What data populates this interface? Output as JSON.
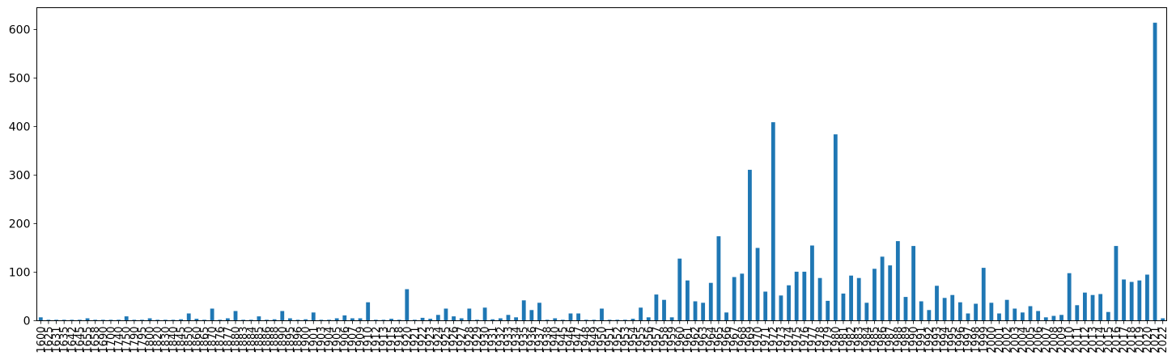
{
  "chart_data": {
    "type": "bar",
    "categories": [
      "1600",
      "1625",
      "1631",
      "1635",
      "1642",
      "1645",
      "1655",
      "1658",
      "1690",
      "1700",
      "1740",
      "1750",
      "1790",
      "1795",
      "1800",
      "1820",
      "1830",
      "1840",
      "1845",
      "1850",
      "1860",
      "1865",
      "1870",
      "1876",
      "1877",
      "1880",
      "1883",
      "1884",
      "1885",
      "1886",
      "1888",
      "1890",
      "1895",
      "1896",
      "1900",
      "1901",
      "1903",
      "1904",
      "1905",
      "1906",
      "1907",
      "1909",
      "1910",
      "1912",
      "1913",
      "1915",
      "1918",
      "1920",
      "1921",
      "1922",
      "1923",
      "1924",
      "1925",
      "1926",
      "1927",
      "1928",
      "1929",
      "1930",
      "1931",
      "1932",
      "1933",
      "1934",
      "1935",
      "1936",
      "1937",
      "1938",
      "1940",
      "1945",
      "1946",
      "1947",
      "1948",
      "1949",
      "1950",
      "1951",
      "1952",
      "1953",
      "1954",
      "1955",
      "1956",
      "1957",
      "1958",
      "1959",
      "1960",
      "1961",
      "1962",
      "1963",
      "1964",
      "1965",
      "1966",
      "1967",
      "1968",
      "1969",
      "1970",
      "1971",
      "1972",
      "1973",
      "1974",
      "1975",
      "1976",
      "1977",
      "1978",
      "1979",
      "1980",
      "1981",
      "1982",
      "1983",
      "1984",
      "1985",
      "1986",
      "1987",
      "1988",
      "1989",
      "1990",
      "1991",
      "1992",
      "1993",
      "1994",
      "1995",
      "1996",
      "1997",
      "1998",
      "1999",
      "2000",
      "2001",
      "2002",
      "2003",
      "2004",
      "2005",
      "2006",
      "2007",
      "2008",
      "2009",
      "2010",
      "2011",
      "2012",
      "2013",
      "2014",
      "2015",
      "2016",
      "2017",
      "2018",
      "2019",
      "2020",
      "2021",
      "2022"
    ],
    "values": [
      7,
      2,
      2,
      2,
      2,
      2,
      5,
      2,
      2,
      2,
      2,
      9,
      2,
      2,
      5,
      2,
      2,
      2,
      3,
      15,
      4,
      2,
      25,
      2,
      5,
      20,
      2,
      2,
      9,
      2,
      3,
      20,
      5,
      2,
      3,
      17,
      2,
      2,
      5,
      11,
      5,
      5,
      38,
      2,
      2,
      4,
      2,
      65,
      2,
      6,
      4,
      12,
      25,
      9,
      5,
      25,
      2,
      27,
      3,
      5,
      12,
      7,
      42,
      22,
      37,
      2,
      5,
      2,
      15,
      15,
      2,
      2,
      25,
      2,
      2,
      2,
      4,
      27,
      7,
      54,
      43,
      7,
      128,
      83,
      40,
      37,
      78,
      174,
      17,
      90,
      97,
      311,
      150,
      60,
      409,
      52,
      73,
      101,
      101,
      155,
      88,
      41,
      384,
      56,
      93,
      88,
      37,
      107,
      132,
      114,
      164,
      49,
      154,
      40,
      22,
      72,
      47,
      53,
      38,
      15,
      35,
      109,
      37,
      15,
      43,
      25,
      17,
      30,
      20,
      7,
      10,
      12,
      98,
      32,
      58,
      53,
      55,
      18,
      154,
      85,
      80,
      83,
      95,
      614,
      5
    ],
    "yticks": [
      0,
      100,
      200,
      300,
      400,
      500,
      600
    ],
    "ylim": [
      0,
      645
    ],
    "bar_color": "#1f77b4",
    "grid": false,
    "title": "",
    "xlabel": "",
    "ylabel": ""
  }
}
